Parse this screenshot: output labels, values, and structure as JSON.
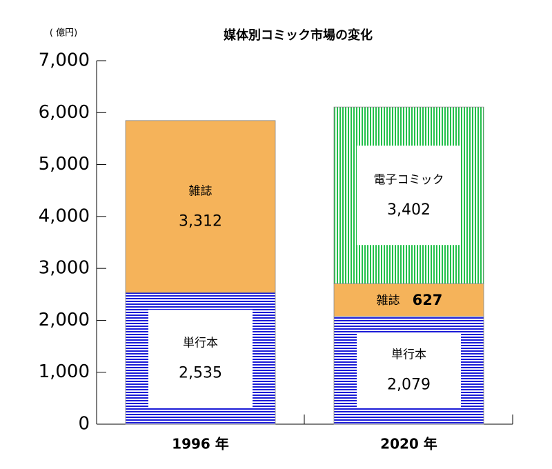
{
  "chart_data": {
    "type": "stacked-bar",
    "title": "媒体別コミック市場の変化",
    "unit_label": "( 億円)",
    "categories": [
      "1996 年",
      "2020 年"
    ],
    "series": [
      {
        "name": "単行本",
        "color": "#1a1ad6",
        "pattern": "horizontal",
        "values": [
          2535,
          2079
        ],
        "value_labels": [
          "2,535",
          "2,079"
        ]
      },
      {
        "name": "雑誌",
        "color": "#f5b35a",
        "pattern": "solid",
        "values": [
          3312,
          627
        ],
        "value_labels": [
          "3,312",
          "627"
        ]
      },
      {
        "name": "電子コミック",
        "color": "#22c04a",
        "pattern": "vertical",
        "values": [
          null,
          3402
        ],
        "value_labels": [
          null,
          "3,402"
        ]
      }
    ],
    "ylim": [
      0,
      7000
    ],
    "yticks": [
      0,
      {
        "value": 1000,
        "label": "1,000"
      },
      {
        "value": 2000,
        "label": "2,000"
      },
      {
        "value": 3000,
        "label": "3,000"
      },
      {
        "value": 4000,
        "label": "4,000"
      },
      {
        "value": 5000,
        "label": "5,000"
      },
      {
        "value": 6000,
        "label": "6,000"
      },
      {
        "value": 7000,
        "label": "7,000"
      }
    ]
  }
}
